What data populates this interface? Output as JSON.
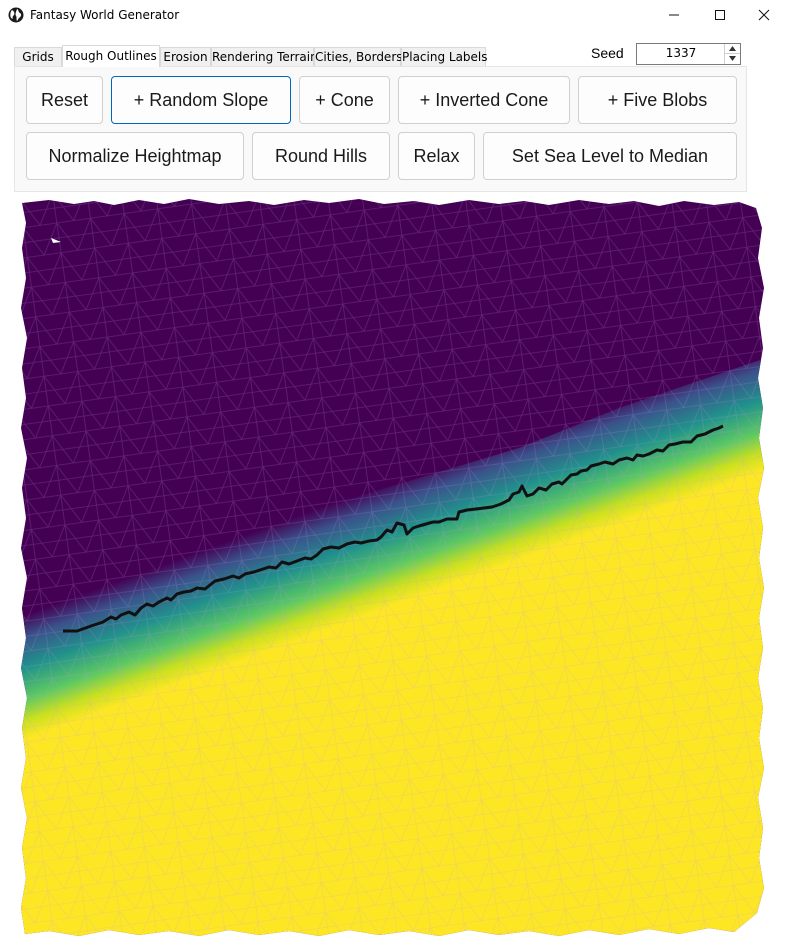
{
  "window": {
    "title": "Fantasy World Generator",
    "icon": "globe-icon",
    "controls": [
      "minimize-icon",
      "maximize-icon",
      "close-icon"
    ]
  },
  "tabs": [
    {
      "label": "Grids",
      "active": false
    },
    {
      "label": "Rough Outlines",
      "active": true
    },
    {
      "label": "Erosion",
      "active": false
    },
    {
      "label": "Rendering Terrain",
      "active": false
    },
    {
      "label": "Cities, Borders",
      "active": false
    },
    {
      "label": "Placing Labels",
      "active": false
    }
  ],
  "seed": {
    "label": "Seed",
    "value": "1337"
  },
  "buttons_row1": [
    "Reset",
    "+ Random Slope",
    "+ Cone",
    "+ Inverted Cone",
    "+ Five Blobs"
  ],
  "buttons_row2": [
    "Normalize Heightmap",
    "Round Hills",
    "Relax",
    "Set Sea Level to Median"
  ],
  "focused_button": "+ Random Slope",
  "map": {
    "colors": {
      "low": "#440154",
      "mid_low": "#3b528b",
      "mid": "#21918c",
      "mid_high": "#5ec962",
      "high": "#fde725",
      "coastline": "#111111",
      "mesh_line": "#7a2a96"
    }
  }
}
